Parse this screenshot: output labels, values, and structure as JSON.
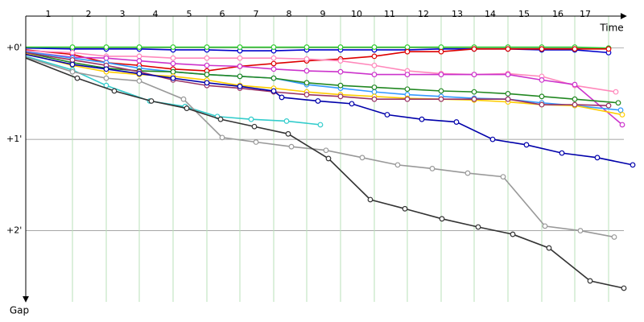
{
  "chart_data": {
    "type": "line",
    "x_label": "Time",
    "y_label": "Gap",
    "xlim": [
      0,
      760
    ],
    "ylim": [
      -0.35,
      2.78
    ],
    "xticks": [
      {
        "value": 28,
        "label": "1"
      },
      {
        "value": 78,
        "label": "2"
      },
      {
        "value": 120,
        "label": "3"
      },
      {
        "value": 161,
        "label": "4"
      },
      {
        "value": 203,
        "label": "5"
      },
      {
        "value": 244,
        "label": "6"
      },
      {
        "value": 286,
        "label": "7"
      },
      {
        "value": 327,
        "label": "8"
      },
      {
        "value": 369,
        "label": "9"
      },
      {
        "value": 411,
        "label": "10"
      },
      {
        "value": 452,
        "label": "11"
      },
      {
        "value": 494,
        "label": "12"
      },
      {
        "value": 536,
        "label": "13"
      },
      {
        "value": 577,
        "label": "14"
      },
      {
        "value": 619,
        "label": "15"
      },
      {
        "value": 661,
        "label": "16"
      },
      {
        "value": 695,
        "label": "17"
      }
    ],
    "yticks": [
      {
        "value": 0,
        "label": "+0'"
      },
      {
        "value": 1,
        "label": "+1'"
      },
      {
        "value": 2,
        "label": "+2'"
      }
    ],
    "grid": true,
    "series": [
      {
        "color": "#0000cc",
        "x": [
          0,
          58,
          100,
          141,
          183,
          225,
          266,
          308,
          349,
          391,
          433,
          474,
          516,
          557,
          599,
          641,
          682,
          724
        ],
        "values": [
          0,
          0.01,
          0.01,
          0.01,
          0.02,
          0.02,
          0.03,
          0.03,
          0.02,
          0.02,
          0.02,
          0.02,
          0.01,
          0.01,
          0.01,
          0.02,
          0.02,
          0.05
        ]
      },
      {
        "color": "#33cc33",
        "x": [
          0,
          58,
          100,
          141,
          183,
          225,
          266,
          308,
          349,
          391,
          433,
          474,
          516,
          557,
          599,
          641,
          682,
          724
        ],
        "values": [
          -0.01,
          -0.01,
          -0.01,
          -0.01,
          -0.01,
          -0.01,
          -0.01,
          -0.01,
          -0.01,
          -0.01,
          -0.01,
          -0.01,
          -0.01,
          -0.01,
          -0.01,
          -0.01,
          -0.01,
          0
        ]
      },
      {
        "color": "#dd0000",
        "x": [
          0,
          58,
          100,
          141,
          183,
          225,
          266,
          308,
          349,
          391,
          433,
          474,
          516,
          557,
          599,
          641,
          682,
          724
        ],
        "values": [
          0.02,
          0.07,
          0.16,
          0.19,
          0.23,
          0.25,
          0.2,
          0.17,
          0.14,
          0.12,
          0.09,
          0.04,
          0.04,
          0.01,
          0.01,
          0.01,
          0.01,
          0.01
        ]
      },
      {
        "color": "#ff88bb",
        "x": [
          0,
          58,
          100,
          141,
          183,
          225,
          266,
          308,
          349,
          391,
          433,
          474,
          516,
          557,
          599,
          641,
          682,
          733
        ],
        "values": [
          0.03,
          0.05,
          0.09,
          0.09,
          0.11,
          0.11,
          0.11,
          0.11,
          0.12,
          0.14,
          0.19,
          0.25,
          0.28,
          0.29,
          0.28,
          0.31,
          0.41,
          0.48
        ]
      },
      {
        "color": "#cc33cc",
        "x": [
          0,
          58,
          100,
          141,
          183,
          225,
          266,
          308,
          349,
          391,
          433,
          474,
          516,
          557,
          599,
          641,
          682,
          741
        ],
        "values": [
          0.04,
          0.1,
          0.11,
          0.14,
          0.17,
          0.19,
          0.2,
          0.23,
          0.25,
          0.26,
          0.29,
          0.29,
          0.29,
          0.29,
          0.29,
          0.35,
          0.4,
          0.84
        ]
      },
      {
        "color": "#3399ff",
        "x": [
          0,
          58,
          100,
          141,
          183,
          225,
          266,
          308,
          349,
          391,
          433,
          474,
          516,
          557,
          599,
          641,
          682,
          739
        ],
        "values": [
          0.04,
          0.11,
          0.16,
          0.22,
          0.26,
          0.29,
          0.31,
          0.33,
          0.4,
          0.44,
          0.48,
          0.51,
          0.53,
          0.55,
          0.56,
          0.6,
          0.63,
          0.68
        ]
      },
      {
        "color": "#228822",
        "x": [
          0,
          58,
          100,
          141,
          183,
          225,
          266,
          308,
          349,
          391,
          433,
          474,
          516,
          557,
          599,
          641,
          682,
          736
        ],
        "values": [
          0.05,
          0.16,
          0.22,
          0.25,
          0.26,
          0.29,
          0.31,
          0.33,
          0.38,
          0.41,
          0.43,
          0.45,
          0.47,
          0.48,
          0.5,
          0.53,
          0.56,
          0.6
        ]
      },
      {
        "color": "#ffcc00",
        "x": [
          0,
          58,
          100,
          141,
          183,
          225,
          266,
          308,
          349,
          391,
          433,
          474,
          516,
          557,
          599,
          641,
          682,
          741
        ],
        "values": [
          0.06,
          0.19,
          0.26,
          0.29,
          0.31,
          0.35,
          0.41,
          0.44,
          0.48,
          0.51,
          0.53,
          0.55,
          0.56,
          0.57,
          0.59,
          0.62,
          0.63,
          0.73
        ]
      },
      {
        "color": "#993366",
        "x": [
          0,
          58,
          100,
          141,
          183,
          225,
          266,
          308,
          349,
          391,
          433,
          474,
          516,
          557,
          599,
          641,
          682,
          724
        ],
        "values": [
          0.05,
          0.13,
          0.19,
          0.26,
          0.35,
          0.41,
          0.44,
          0.48,
          0.51,
          0.53,
          0.56,
          0.56,
          0.56,
          0.56,
          0.56,
          0.62,
          0.62,
          0.63
        ]
      },
      {
        "color": "#0000aa",
        "x": [
          0,
          58,
          100,
          141,
          183,
          225,
          266,
          308,
          318,
          363,
          405,
          449,
          492,
          535,
          580,
          622,
          666,
          710,
          754
        ],
        "values": [
          0.07,
          0.18,
          0.23,
          0.28,
          0.33,
          0.38,
          0.42,
          0.47,
          0.54,
          0.58,
          0.61,
          0.73,
          0.78,
          0.81,
          1,
          1.06,
          1.15,
          1.2,
          1.28
        ]
      },
      {
        "color": "#33cccc",
        "x": [
          0,
          58,
          100,
          154,
          198,
          238,
          280,
          324,
          366
        ],
        "values": [
          0.09,
          0.24,
          0.41,
          0.58,
          0.64,
          0.75,
          0.78,
          0.8,
          0.84
        ]
      },
      {
        "color": "#999999",
        "x": [
          0,
          58,
          100,
          141,
          196,
          244,
          286,
          330,
          373,
          418,
          462,
          505,
          549,
          593,
          645,
          689,
          731
        ],
        "values": [
          0.1,
          0.26,
          0.33,
          0.36,
          0.56,
          0.98,
          1.03,
          1.08,
          1.12,
          1.2,
          1.28,
          1.32,
          1.37,
          1.41,
          1.95,
          2,
          2.07
        ]
      },
      {
        "color": "#333333",
        "x": [
          0,
          64,
          110,
          156,
          200,
          242,
          284,
          326,
          376,
          428,
          471,
          517,
          562,
          605,
          650,
          701,
          743
        ],
        "values": [
          0.11,
          0.33,
          0.47,
          0.58,
          0.66,
          0.78,
          0.86,
          0.94,
          1.21,
          1.66,
          1.76,
          1.87,
          1.96,
          2.04,
          2.19,
          2.55,
          2.63
        ]
      }
    ]
  }
}
